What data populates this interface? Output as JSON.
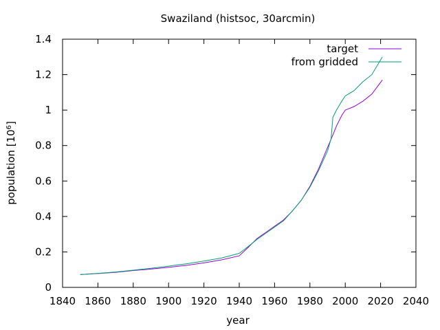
{
  "chart_data": {
    "type": "line",
    "title": "Swaziland (histsoc, 30arcmin)",
    "xlabel": "year",
    "ylabel": "population [10",
    "ylabel_superscript": "6",
    "ylabel_suffix": "]",
    "xlim": [
      1840,
      2040
    ],
    "ylim": [
      0,
      1.4
    ],
    "x_ticks": [
      1840,
      1860,
      1880,
      1900,
      1920,
      1940,
      1960,
      1980,
      2000,
      2020,
      2040
    ],
    "x_tick_labels": [
      "1840",
      "1860",
      "1880",
      "1900",
      "1920",
      "1940",
      "1960",
      "1980",
      "2000",
      "2020",
      "2040"
    ],
    "y_ticks": [
      0,
      0.2,
      0.4,
      0.6,
      0.8,
      1.0,
      1.2,
      1.4
    ],
    "y_tick_labels": [
      "0",
      "0.2",
      "0.4",
      "0.6",
      "0.8",
      "1",
      "1.2",
      "1.4"
    ],
    "grid": false,
    "legend_position": "top-right",
    "series": [
      {
        "name": "target",
        "color": "#9400d3",
        "x": [
          1850,
          1860,
          1870,
          1880,
          1890,
          1900,
          1910,
          1920,
          1930,
          1940,
          1945,
          1950,
          1955,
          1960,
          1965,
          1970,
          1975,
          1980,
          1985,
          1990,
          1993,
          1995,
          1998,
          2000,
          2005,
          2010,
          2015,
          2021
        ],
        "y": [
          0.072,
          0.078,
          0.085,
          0.095,
          0.103,
          0.113,
          0.124,
          0.138,
          0.155,
          0.178,
          0.225,
          0.275,
          0.31,
          0.345,
          0.38,
          0.43,
          0.49,
          0.57,
          0.67,
          0.79,
          0.86,
          0.91,
          0.97,
          1.0,
          1.02,
          1.05,
          1.09,
          1.17
        ]
      },
      {
        "name": "from gridded",
        "color": "#009e73",
        "x": [
          1850,
          1860,
          1870,
          1880,
          1890,
          1900,
          1910,
          1920,
          1930,
          1940,
          1945,
          1950,
          1955,
          1960,
          1965,
          1970,
          1975,
          1980,
          1985,
          1990,
          1992,
          1993,
          1995,
          1998,
          2000,
          2005,
          2010,
          2015,
          2021
        ],
        "y": [
          0.072,
          0.079,
          0.087,
          0.097,
          0.108,
          0.12,
          0.133,
          0.148,
          0.166,
          0.192,
          0.23,
          0.27,
          0.305,
          0.34,
          0.375,
          0.43,
          0.49,
          0.565,
          0.66,
          0.77,
          0.84,
          0.96,
          1.0,
          1.05,
          1.08,
          1.11,
          1.16,
          1.2,
          1.3
        ]
      }
    ]
  }
}
